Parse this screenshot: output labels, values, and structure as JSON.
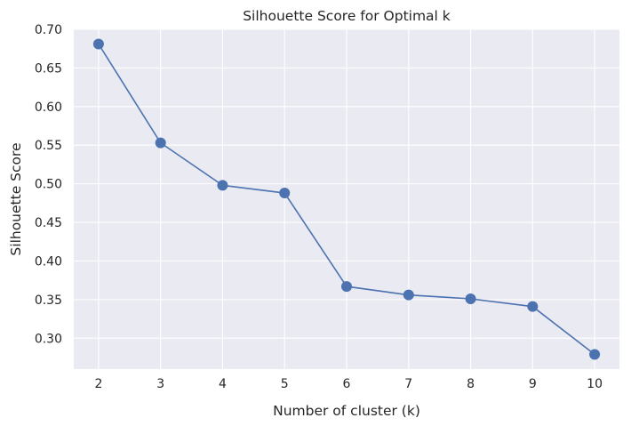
{
  "chart_data": {
    "type": "line",
    "title": "Silhouette Score for Optimal k",
    "xlabel": "Number of cluster (k)",
    "ylabel": "Silhouette Score",
    "x": [
      2,
      3,
      4,
      5,
      6,
      7,
      8,
      9,
      10
    ],
    "series": [
      {
        "values": [
          0.681,
          0.553,
          0.498,
          0.488,
          0.367,
          0.356,
          0.351,
          0.341,
          0.279
        ]
      }
    ],
    "xticks": [
      "2",
      "3",
      "4",
      "5",
      "6",
      "7",
      "8",
      "9",
      "10"
    ],
    "yticks": [
      "0.30",
      "0.35",
      "0.40",
      "0.45",
      "0.50",
      "0.55",
      "0.60",
      "0.65",
      "0.70"
    ],
    "xlim": [
      1.6,
      10.4
    ],
    "ylim": [
      0.26,
      0.7
    ],
    "grid": true,
    "marker": "circle",
    "colors": {
      "background": "#eaeaf2",
      "grid": "#ffffff",
      "line": "#4c72b0"
    }
  }
}
